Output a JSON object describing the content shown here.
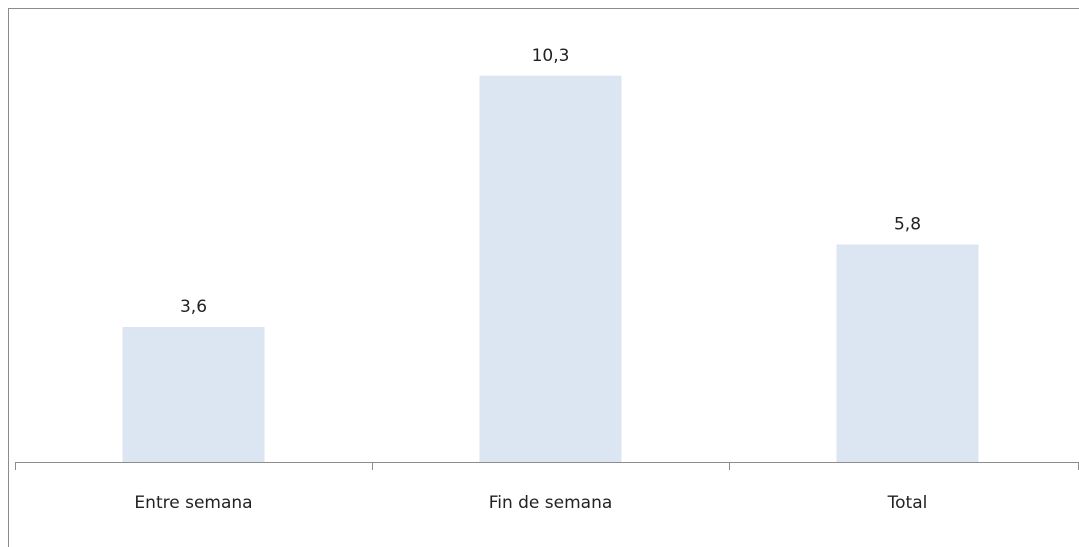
{
  "chart_data": {
    "type": "bar",
    "categories": [
      "Entre semana",
      "Fin de semana",
      "Total"
    ],
    "values": [
      3.6,
      10.3,
      5.8
    ],
    "value_labels": [
      "3,6",
      "10,3",
      "5,8"
    ],
    "color": "#dce6f2",
    "ylim": [
      0,
      12
    ]
  }
}
